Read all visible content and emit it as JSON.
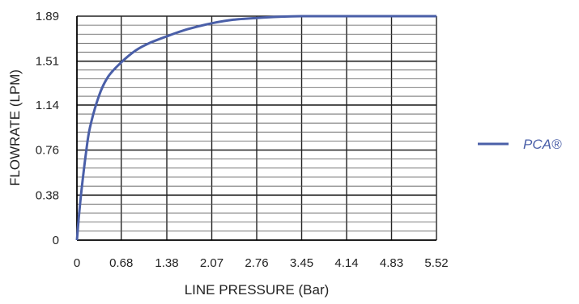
{
  "chart_data": {
    "type": "line",
    "xlabel": "LINE PRESSURE (Bar)",
    "ylabel": "FLOWRATE (LPM)",
    "xlim": [
      0,
      5.52
    ],
    "ylim": [
      0,
      1.89
    ],
    "x_ticks": [
      "0",
      "0.68",
      "1.38",
      "2.07",
      "2.76",
      "3.45",
      "4.14",
      "4.83",
      "5.52"
    ],
    "y_ticks": [
      "0",
      "0.38",
      "0.76",
      "1.14",
      "1.51",
      "1.89"
    ],
    "grid": true,
    "legend_position": "right",
    "series": [
      {
        "name": "PCA®",
        "color": "#4a5fa8",
        "x": [
          0,
          0.03,
          0.07,
          0.14,
          0.2,
          0.34,
          0.48,
          0.68,
          0.9,
          1.1,
          1.38,
          1.7,
          2.07,
          2.4,
          2.76,
          3.1,
          3.45,
          4.14,
          4.83,
          5.52
        ],
        "y": [
          0,
          0.2,
          0.42,
          0.74,
          0.95,
          1.22,
          1.38,
          1.5,
          1.6,
          1.66,
          1.72,
          1.78,
          1.83,
          1.86,
          1.875,
          1.885,
          1.89,
          1.89,
          1.89,
          1.89
        ]
      }
    ]
  },
  "colors": {
    "axis": "#000000",
    "grid": "#222222",
    "text": "#222222",
    "series": "#4a5fa8"
  }
}
